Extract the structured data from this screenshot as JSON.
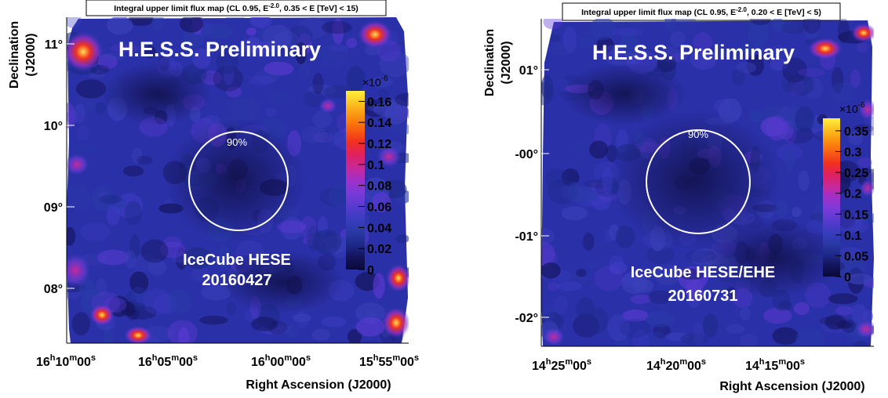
{
  "chart_data": [
    {
      "type": "heatmap",
      "title": "Integral upper limit flux map (CL 0.95, E-2.0, 0.35 < E [TeV] < 15)",
      "title_parts": {
        "pre": "Integral upper limit flux map (CL 0.95, E",
        "sup": "-2.0",
        "post": ", 0.35 < E [TeV] < 15)"
      },
      "xlabel": "Right Ascension (J2000)",
      "ylabel_line1": "Declination",
      "ylabel_line2": "(J2000)",
      "x_ticks": [
        {
          "h": "16",
          "m": "10",
          "s": "00"
        },
        {
          "h": "16",
          "m": "05",
          "s": "00"
        },
        {
          "h": "16",
          "m": "00",
          "s": "00"
        },
        {
          "h": "15",
          "m": "55",
          "s": "00"
        }
      ],
      "y_ticks": [
        "11°",
        "10°",
        "09°",
        "08°"
      ],
      "colorbar": {
        "exponent_base": "×10",
        "exponent": "-6",
        "ticks": [
          "0.16",
          "0.14",
          "0.12",
          "0.1",
          "0.08",
          "0.06",
          "0.04",
          "0.02",
          "0"
        ],
        "range": [
          0,
          0.17
        ],
        "colors": [
          "#0a0a3a",
          "#14145c",
          "#1e2a8a",
          "#2a3aa8",
          "#3c3cc0",
          "#5a3ad0",
          "#7a3ad8",
          "#a030c8",
          "#c82898",
          "#e02060",
          "#f03020",
          "#f86010",
          "#fa9010",
          "#fcc020",
          "#fff040"
        ]
      },
      "watermark": "H.E.S.S. Preliminary",
      "circle_label": "90%",
      "source_name": "IceCube HESE",
      "source_date": "20160427",
      "hotspots": [
        "top-left",
        "top-right",
        "left edge",
        "bottom-left",
        "bottom-right",
        "right edge"
      ]
    },
    {
      "type": "heatmap",
      "title": "Integral upper limit flux map (CL 0.95, E-2.0, 0.20 < E [TeV] < 5)",
      "title_parts": {
        "pre": "Integral upper limit flux map (CL 0.95, E",
        "sup": "-2.0",
        "post": ", 0.20 < E [TeV] < 5)"
      },
      "xlabel": "Right Ascension (J2000)",
      "ylabel_line1": "Declination",
      "ylabel_line2": "(J2000)",
      "x_ticks": [
        {
          "h": "14",
          "m": "25",
          "s": "00"
        },
        {
          "h": "14",
          "m": "20",
          "s": "00"
        },
        {
          "h": "14",
          "m": "15",
          "s": "00"
        }
      ],
      "y_ticks": [
        "01°",
        "-00°",
        "-01°",
        "-02°"
      ],
      "colorbar": {
        "exponent_base": "×10",
        "exponent": "-6",
        "ticks": [
          "0.35",
          "0.3",
          "0.25",
          "0.2",
          "0.15",
          "0.1",
          "0.05",
          "0"
        ],
        "range": [
          0,
          0.38
        ],
        "colors": [
          "#0a0a3a",
          "#14145c",
          "#1e2a8a",
          "#2a3aa8",
          "#3c3cc0",
          "#5a3ad0",
          "#7a3ad8",
          "#a030c8",
          "#c82898",
          "#e02060",
          "#f03020",
          "#f86010",
          "#fa9010",
          "#fcc020",
          "#fff040"
        ]
      },
      "watermark": "H.E.S.S. Preliminary",
      "circle_label": "90%",
      "source_name": "IceCube HESE/EHE",
      "source_date": "20160731",
      "hotspots": [
        "top-right",
        "bottom-left",
        "right edge"
      ]
    }
  ]
}
